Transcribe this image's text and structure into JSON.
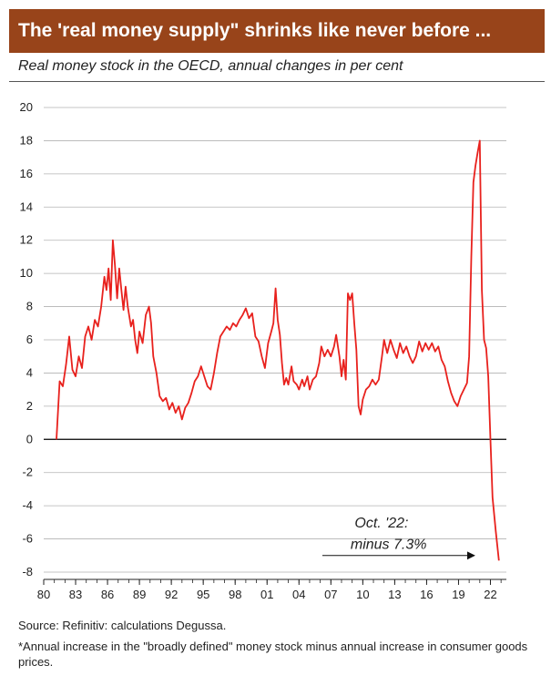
{
  "header": {
    "title": "The 'real money supply\" shrinks like never before ...",
    "subtitle": "Real money stock in the OECD, annual changes in per cent"
  },
  "colors": {
    "title_bg": "#98441a",
    "series": "#e8211d",
    "zero_line": "#000000",
    "grid": "#b3b3b3"
  },
  "chart_data": {
    "type": "line",
    "title": "",
    "xlabel": "",
    "ylabel": "",
    "ylim": [
      -8,
      20
    ],
    "xlim": [
      1980,
      2023.5
    ],
    "grid": true,
    "legend": "none",
    "y_ticks": [
      20,
      18,
      16,
      14,
      12,
      10,
      8,
      6,
      4,
      2,
      0,
      -2,
      -4,
      -6,
      -8
    ],
    "x_ticks": [
      {
        "value": 1980,
        "label": "80"
      },
      {
        "value": 1983,
        "label": "83"
      },
      {
        "value": 1986,
        "label": "86"
      },
      {
        "value": 1989,
        "label": "89"
      },
      {
        "value": 1992,
        "label": "92"
      },
      {
        "value": 1995,
        "label": "95"
      },
      {
        "value": 1998,
        "label": "98"
      },
      {
        "value": 2001,
        "label": "01"
      },
      {
        "value": 2004,
        "label": "04"
      },
      {
        "value": 2007,
        "label": "07"
      },
      {
        "value": 2010,
        "label": "10"
      },
      {
        "value": 2013,
        "label": "13"
      },
      {
        "value": 2016,
        "label": "16"
      },
      {
        "value": 2019,
        "label": "19"
      },
      {
        "value": 2022,
        "label": "22"
      }
    ],
    "series": [
      {
        "values": [
          [
            1981.2,
            0.0
          ],
          [
            1981.5,
            3.5
          ],
          [
            1981.8,
            3.2
          ],
          [
            1982.1,
            4.5
          ],
          [
            1982.4,
            6.2
          ],
          [
            1982.7,
            4.2
          ],
          [
            1983.0,
            3.8
          ],
          [
            1983.3,
            5.0
          ],
          [
            1983.6,
            4.3
          ],
          [
            1983.9,
            6.2
          ],
          [
            1984.2,
            6.8
          ],
          [
            1984.5,
            6.0
          ],
          [
            1984.8,
            7.2
          ],
          [
            1985.1,
            6.8
          ],
          [
            1985.4,
            8.0
          ],
          [
            1985.7,
            9.8
          ],
          [
            1985.9,
            9.0
          ],
          [
            1986.1,
            10.3
          ],
          [
            1986.3,
            8.4
          ],
          [
            1986.5,
            12.0
          ],
          [
            1986.7,
            10.5
          ],
          [
            1986.9,
            8.5
          ],
          [
            1987.1,
            10.3
          ],
          [
            1987.3,
            9.0
          ],
          [
            1987.5,
            7.8
          ],
          [
            1987.7,
            9.2
          ],
          [
            1987.9,
            8.0
          ],
          [
            1988.2,
            6.8
          ],
          [
            1988.4,
            7.2
          ],
          [
            1988.6,
            6.0
          ],
          [
            1988.8,
            5.2
          ],
          [
            1989.0,
            6.5
          ],
          [
            1989.3,
            5.8
          ],
          [
            1989.6,
            7.5
          ],
          [
            1989.9,
            8.0
          ],
          [
            1990.1,
            7.0
          ],
          [
            1990.3,
            5.0
          ],
          [
            1990.6,
            4.0
          ],
          [
            1990.9,
            2.6
          ],
          [
            1991.2,
            2.3
          ],
          [
            1991.5,
            2.5
          ],
          [
            1991.8,
            1.8
          ],
          [
            1992.1,
            2.2
          ],
          [
            1992.4,
            1.6
          ],
          [
            1992.7,
            2.0
          ],
          [
            1993.0,
            1.2
          ],
          [
            1993.3,
            1.9
          ],
          [
            1993.6,
            2.2
          ],
          [
            1993.9,
            2.8
          ],
          [
            1994.2,
            3.5
          ],
          [
            1994.5,
            3.8
          ],
          [
            1994.8,
            4.4
          ],
          [
            1995.1,
            3.8
          ],
          [
            1995.4,
            3.2
          ],
          [
            1995.7,
            3.0
          ],
          [
            1996.0,
            4.0
          ],
          [
            1996.3,
            5.2
          ],
          [
            1996.6,
            6.2
          ],
          [
            1996.9,
            6.5
          ],
          [
            1997.2,
            6.8
          ],
          [
            1997.5,
            6.6
          ],
          [
            1997.8,
            7.0
          ],
          [
            1998.1,
            6.8
          ],
          [
            1998.4,
            7.2
          ],
          [
            1998.7,
            7.5
          ],
          [
            1999.0,
            7.9
          ],
          [
            1999.3,
            7.3
          ],
          [
            1999.6,
            7.6
          ],
          [
            1999.9,
            6.2
          ],
          [
            2000.2,
            5.9
          ],
          [
            2000.5,
            5.0
          ],
          [
            2000.8,
            4.3
          ],
          [
            2001.1,
            5.8
          ],
          [
            2001.4,
            6.5
          ],
          [
            2001.6,
            7.0
          ],
          [
            2001.8,
            9.1
          ],
          [
            2002.0,
            7.2
          ],
          [
            2002.2,
            6.3
          ],
          [
            2002.4,
            4.6
          ],
          [
            2002.6,
            3.3
          ],
          [
            2002.8,
            3.7
          ],
          [
            2003.0,
            3.3
          ],
          [
            2003.3,
            4.4
          ],
          [
            2003.5,
            3.5
          ],
          [
            2003.8,
            3.3
          ],
          [
            2004.0,
            3.0
          ],
          [
            2004.3,
            3.6
          ],
          [
            2004.5,
            3.2
          ],
          [
            2004.8,
            3.8
          ],
          [
            2005.0,
            3.0
          ],
          [
            2005.3,
            3.6
          ],
          [
            2005.6,
            3.8
          ],
          [
            2005.9,
            4.6
          ],
          [
            2006.1,
            5.6
          ],
          [
            2006.4,
            5.0
          ],
          [
            2006.7,
            5.4
          ],
          [
            2007.0,
            5.0
          ],
          [
            2007.3,
            5.6
          ],
          [
            2007.5,
            6.3
          ],
          [
            2007.8,
            5.0
          ],
          [
            2008.0,
            3.8
          ],
          [
            2008.2,
            4.8
          ],
          [
            2008.4,
            3.6
          ],
          [
            2008.6,
            8.8
          ],
          [
            2008.8,
            8.4
          ],
          [
            2009.0,
            8.8
          ],
          [
            2009.2,
            7.0
          ],
          [
            2009.4,
            5.4
          ],
          [
            2009.6,
            2.0
          ],
          [
            2009.8,
            1.5
          ],
          [
            2010.0,
            2.4
          ],
          [
            2010.3,
            3.0
          ],
          [
            2010.6,
            3.2
          ],
          [
            2010.9,
            3.6
          ],
          [
            2011.2,
            3.3
          ],
          [
            2011.5,
            3.6
          ],
          [
            2011.8,
            5.0
          ],
          [
            2012.0,
            6.0
          ],
          [
            2012.3,
            5.2
          ],
          [
            2012.6,
            6.0
          ],
          [
            2012.9,
            5.4
          ],
          [
            2013.2,
            4.9
          ],
          [
            2013.5,
            5.8
          ],
          [
            2013.8,
            5.2
          ],
          [
            2014.1,
            5.6
          ],
          [
            2014.4,
            5.0
          ],
          [
            2014.7,
            4.6
          ],
          [
            2015.0,
            5.0
          ],
          [
            2015.3,
            5.9
          ],
          [
            2015.6,
            5.3
          ],
          [
            2015.9,
            5.8
          ],
          [
            2016.2,
            5.4
          ],
          [
            2016.5,
            5.8
          ],
          [
            2016.8,
            5.3
          ],
          [
            2017.1,
            5.6
          ],
          [
            2017.4,
            4.8
          ],
          [
            2017.7,
            4.4
          ],
          [
            2018.0,
            3.5
          ],
          [
            2018.3,
            2.8
          ],
          [
            2018.6,
            2.3
          ],
          [
            2018.9,
            2.0
          ],
          [
            2019.2,
            2.6
          ],
          [
            2019.5,
            3.0
          ],
          [
            2019.8,
            3.4
          ],
          [
            2020.0,
            5.0
          ],
          [
            2020.2,
            11.0
          ],
          [
            2020.4,
            15.5
          ],
          [
            2020.6,
            16.5
          ],
          [
            2020.8,
            17.3
          ],
          [
            2021.0,
            18.0
          ],
          [
            2021.2,
            9.0
          ],
          [
            2021.4,
            6.0
          ],
          [
            2021.6,
            5.5
          ],
          [
            2021.8,
            3.8
          ],
          [
            2022.0,
            0.0
          ],
          [
            2022.2,
            -3.5
          ],
          [
            2022.5,
            -5.5
          ],
          [
            2022.8,
            -7.3
          ]
        ]
      }
    ],
    "annotations": [
      {
        "lines": [
          "Oct. '22:",
          "minus 7.3%"
        ],
        "x": 2022.0,
        "y": -7.0
      }
    ]
  },
  "footer": {
    "source": "Source: Refinitiv: calculations Degussa.",
    "note": "*Annual increase in the \"broadly defined\" money stock minus annual increase in consumer goods prices."
  }
}
